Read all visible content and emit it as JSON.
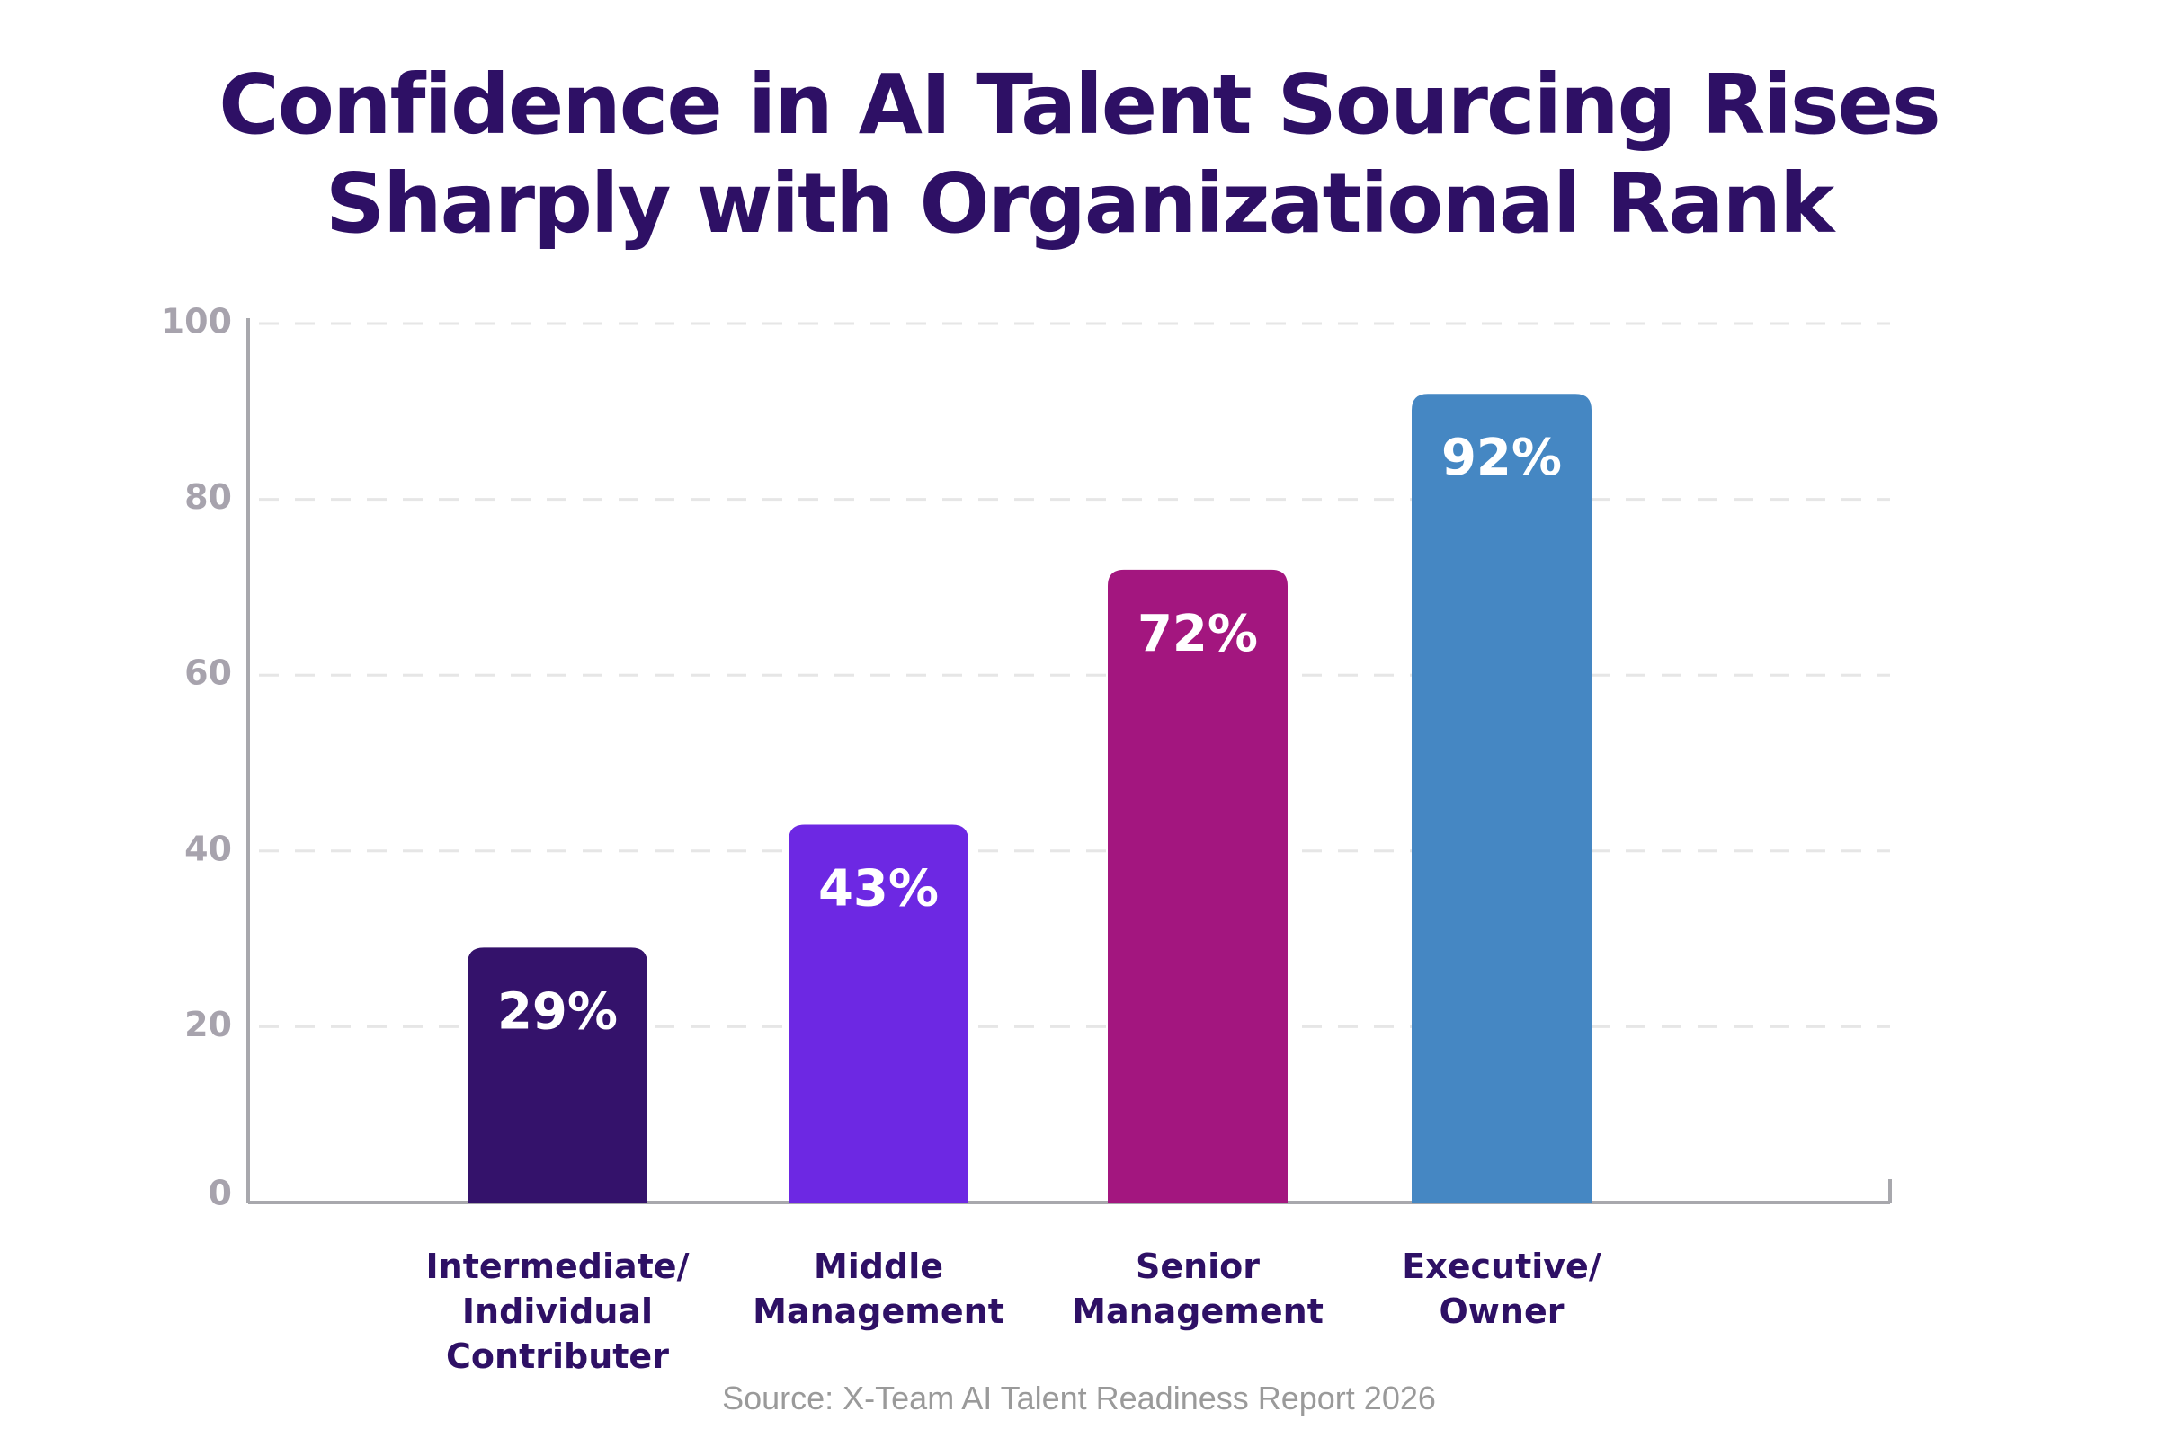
{
  "chart_data": {
    "type": "bar",
    "title": "Confidence in AI Talent Sourcing Rises Sharply with Organizational Rank",
    "title_lines": [
      "Confidence in AI Talent Sourcing Rises",
      "Sharply with Organizational Rank"
    ],
    "categories": [
      [
        "Intermediate/",
        "Individual",
        "Contributer"
      ],
      [
        "Middle",
        "Management"
      ],
      [
        "Senior",
        "Management"
      ],
      [
        "Executive/",
        "Owner"
      ]
    ],
    "values": [
      29,
      43,
      72,
      92
    ],
    "data_labels": [
      "29%",
      "43%",
      "72%",
      "92%"
    ],
    "colors": [
      "#34126b",
      "#6d28e3",
      "#a3167f",
      "#4587c3"
    ],
    "ylim": [
      0,
      100
    ],
    "yticks": [
      0,
      20,
      40,
      60,
      80,
      100
    ],
    "grid": true,
    "xlabel": "",
    "ylabel": "",
    "source": "Source: X-Team AI Talent Readiness Report 2026"
  }
}
